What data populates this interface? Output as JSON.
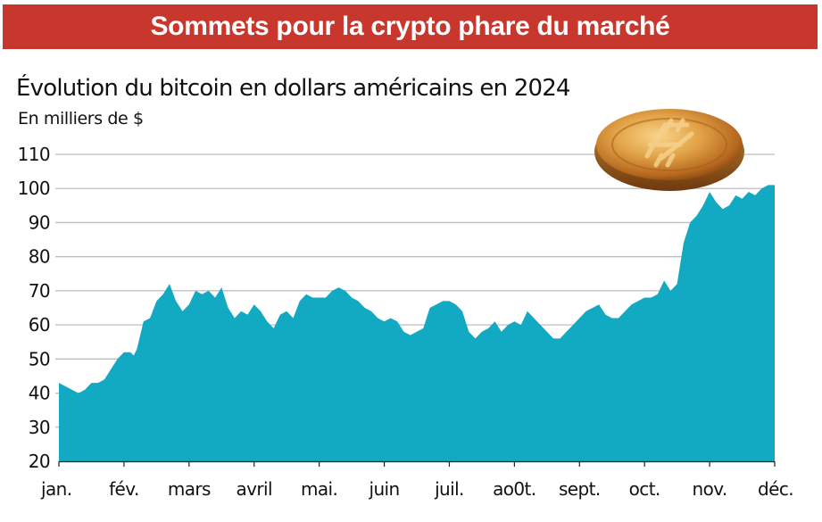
{
  "banner": {
    "title": "Sommets pour la crypto phare du marché"
  },
  "chart_data": {
    "type": "area",
    "title": "Évolution du bitcoin en dollars américains en 2024",
    "ylabel": "En milliers de $",
    "xlabel": "",
    "ylim": [
      20,
      110
    ],
    "yticks": [
      "20",
      "30",
      "40",
      "50",
      "60",
      "70",
      "80",
      "90",
      "100",
      "110"
    ],
    "xticks": [
      "jan.",
      "fév.",
      "mars",
      "avril",
      "mai.",
      "juin",
      "juil.",
      "ao0t.",
      "sept.",
      "oct.",
      "nov.",
      "déc."
    ],
    "grid": "horizontal",
    "color": "#12a9c2",
    "series": [
      {
        "x": [
          0,
          0.1,
          0.2,
          0.3,
          0.4,
          0.45,
          0.5,
          0.6,
          0.7,
          0.8,
          0.9,
          1,
          1.1,
          1.15,
          1.2,
          1.3,
          1.4,
          1.5,
          1.6,
          1.7,
          1.8,
          1.9,
          2,
          2.1,
          2.2,
          2.3,
          2.4,
          2.5,
          2.6,
          2.7,
          2.8,
          2.9,
          3,
          3.1,
          3.2,
          3.3,
          3.4,
          3.5,
          3.6,
          3.7,
          3.8,
          3.9,
          4,
          4.1,
          4.2,
          4.3,
          4.4,
          4.5,
          4.6,
          4.7,
          4.8,
          4.9,
          5,
          5.1,
          5.2,
          5.3,
          5.4,
          5.5,
          5.6,
          5.7,
          5.8,
          5.9,
          6,
          6.1,
          6.2,
          6.3,
          6.4,
          6.5,
          6.6,
          6.7,
          6.8,
          6.9,
          7,
          7.1,
          7.2,
          7.3,
          7.4,
          7.5,
          7.6,
          7.7,
          7.8,
          7.9,
          8,
          8.1,
          8.2,
          8.3,
          8.4,
          8.5,
          8.6,
          8.7,
          8.8,
          8.9,
          9,
          9.1,
          9.2,
          9.3,
          9.4,
          9.5,
          9.6,
          9.7,
          9.8,
          9.9,
          10,
          10.1,
          10.2,
          10.3,
          10.4,
          10.5,
          10.6,
          10.7,
          10.8,
          10.9,
          11
        ],
        "y": [
          43,
          42,
          41,
          40,
          41,
          42,
          43,
          43,
          44,
          47,
          50,
          52,
          52,
          51,
          53,
          61,
          62,
          67,
          69,
          72,
          67,
          64,
          66,
          70,
          69,
          70,
          68,
          71,
          65,
          62,
          64,
          63,
          66,
          64,
          61,
          59,
          63,
          64,
          62,
          67,
          69,
          68,
          68,
          68,
          70,
          71,
          70,
          68,
          67,
          65,
          64,
          62,
          61,
          62,
          61,
          58,
          57,
          58,
          59,
          65,
          66,
          67,
          67,
          66,
          64,
          58,
          56,
          58,
          59,
          61,
          58,
          60,
          61,
          60,
          64,
          62,
          60,
          58,
          56,
          56,
          58,
          60,
          62,
          64,
          65,
          66,
          63,
          62,
          62,
          64,
          66,
          67,
          68,
          68,
          69,
          73,
          70,
          72,
          84,
          90,
          92,
          95,
          99,
          96,
          94,
          95,
          98,
          97,
          99,
          98,
          100,
          101,
          101
        ]
      }
    ]
  }
}
